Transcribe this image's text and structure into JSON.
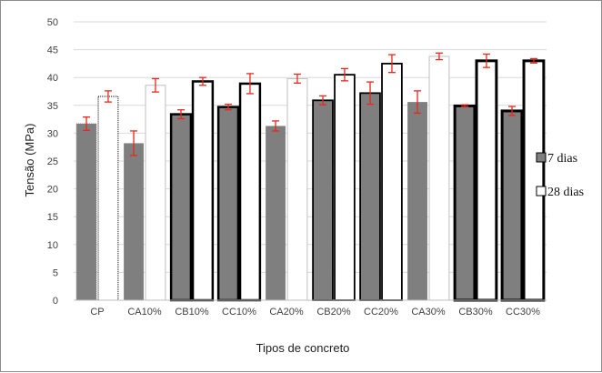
{
  "chart_data": {
    "type": "bar",
    "title": "",
    "xlabel": "Tipos de concreto",
    "ylabel": "Tensão (MPa)",
    "ylim": [
      0,
      50
    ],
    "yticks": [
      0,
      5,
      10,
      15,
      20,
      25,
      30,
      35,
      40,
      45,
      50
    ],
    "grid": true,
    "legend_position": "right",
    "categories": [
      "CP",
      "CA10%",
      "CB10%",
      "CC10%",
      "CA20%",
      "CB20%",
      "CC20%",
      "CA30%",
      "CB30%",
      "CC30%"
    ],
    "series": [
      {
        "name": "7 dias",
        "color": "#7f7f7f",
        "values": [
          31.7,
          28.2,
          33.4,
          34.7,
          31.3,
          35.9,
          37.2,
          35.6,
          34.9,
          34.0
        ],
        "errors": [
          1.2,
          2.2,
          0.8,
          0.5,
          0.9,
          0.8,
          2.0,
          2.0,
          0.2,
          0.8
        ]
      },
      {
        "name": "28 dias",
        "color": "#ffffff",
        "values": [
          36.6,
          38.6,
          39.3,
          38.9,
          39.8,
          40.5,
          42.5,
          43.8,
          43.0,
          43.0
        ],
        "errors": [
          1.0,
          1.2,
          0.7,
          1.8,
          0.8,
          1.1,
          1.6,
          0.6,
          1.2,
          0.4
        ]
      }
    ],
    "error_bar_color": "#e8281b"
  }
}
